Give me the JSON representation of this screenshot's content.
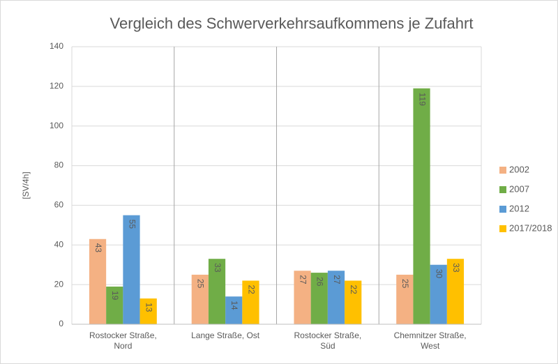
{
  "chart_data": {
    "type": "bar",
    "title": "Vergleich des Schwerverkehrsaufkommens je Zufahrt",
    "y_label": "[SV/4h]",
    "categories": [
      "Rostocker Straße, Nord",
      "Lange Straße, Ost",
      "Rostocker Straße, Süd",
      "Chemnitzer Straße, West"
    ],
    "series": [
      {
        "name": "2002",
        "color": "#f4b183",
        "values": [
          43,
          25,
          27,
          25
        ]
      },
      {
        "name": "2007",
        "color": "#70ad47",
        "values": [
          19,
          33,
          26,
          119
        ]
      },
      {
        "name": "2012",
        "color": "#5b9bd5",
        "values": [
          55,
          14,
          27,
          30
        ]
      },
      {
        "name": "2017/2018",
        "color": "#ffc000",
        "values": [
          13,
          22,
          22,
          33
        ]
      }
    ],
    "ylim": [
      0,
      140
    ],
    "yticks": [
      0,
      20,
      40,
      60,
      80,
      100,
      120,
      140
    ],
    "grid": true,
    "legend": "right"
  }
}
